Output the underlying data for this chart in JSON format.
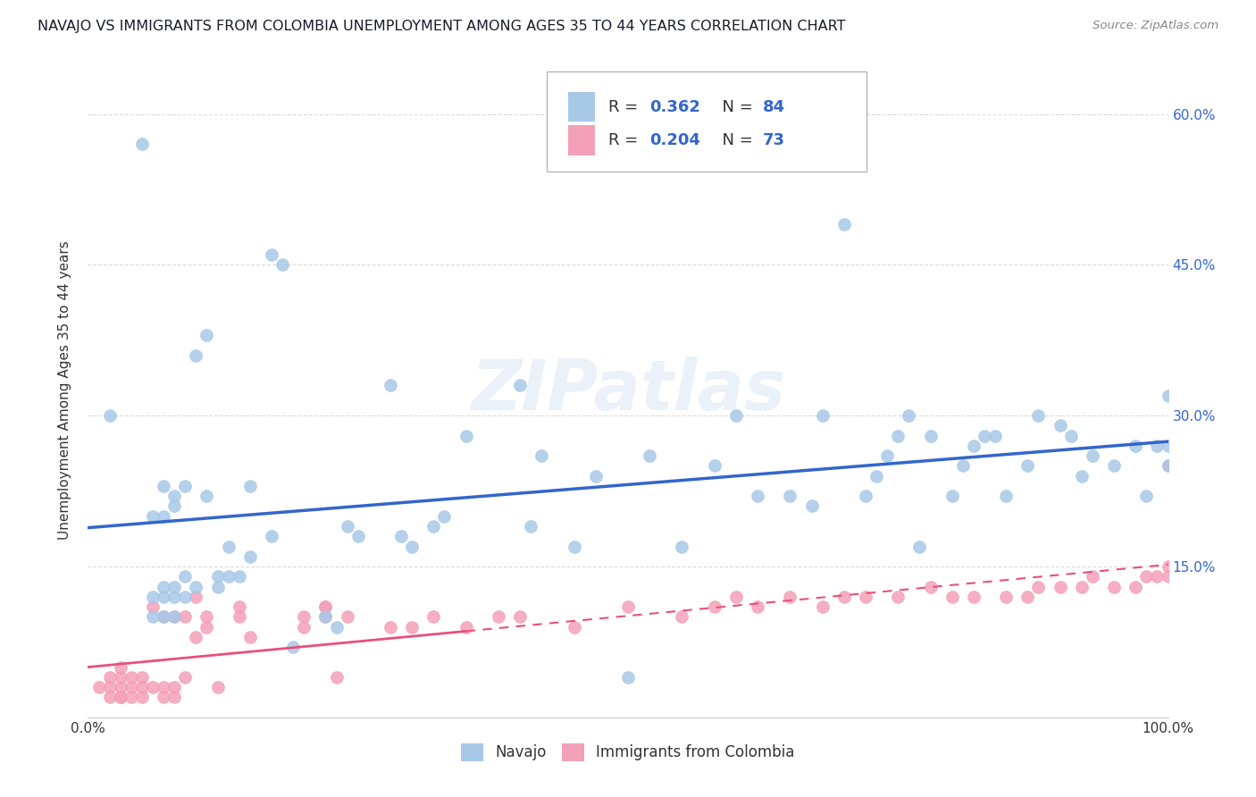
{
  "title": "NAVAJO VS IMMIGRANTS FROM COLOMBIA UNEMPLOYMENT AMONG AGES 35 TO 44 YEARS CORRELATION CHART",
  "source": "Source: ZipAtlas.com",
  "ylabel": "Unemployment Among Ages 35 to 44 years",
  "xlim": [
    0.0,
    1.0
  ],
  "ylim": [
    0.0,
    0.65
  ],
  "navajo_R": 0.362,
  "navajo_N": 84,
  "colombia_R": 0.204,
  "colombia_N": 73,
  "navajo_color": "#a8c8e8",
  "navajo_line_color": "#3366cc",
  "colombia_color": "#f4a0b8",
  "colombia_line_color": "#e8507a",
  "legend_label_navajo": "Navajo",
  "legend_label_colombia": "Immigrants from Colombia",
  "navajo_x": [
    0.02,
    0.05,
    0.06,
    0.06,
    0.06,
    0.07,
    0.07,
    0.07,
    0.07,
    0.07,
    0.08,
    0.08,
    0.08,
    0.08,
    0.08,
    0.09,
    0.09,
    0.09,
    0.1,
    0.1,
    0.11,
    0.11,
    0.12,
    0.12,
    0.13,
    0.13,
    0.14,
    0.15,
    0.15,
    0.17,
    0.17,
    0.18,
    0.22,
    0.23,
    0.24,
    0.25,
    0.28,
    0.3,
    0.32,
    0.35,
    0.4,
    0.42,
    0.45,
    0.47,
    0.5,
    0.52,
    0.55,
    0.58,
    0.6,
    0.62,
    0.65,
    0.67,
    0.68,
    0.7,
    0.72,
    0.73,
    0.74,
    0.75,
    0.76,
    0.77,
    0.78,
    0.8,
    0.81,
    0.82,
    0.83,
    0.84,
    0.85,
    0.87,
    0.88,
    0.9,
    0.91,
    0.92,
    0.93,
    0.95,
    0.97,
    0.98,
    0.99,
    1.0,
    1.0,
    1.0,
    0.19,
    0.29,
    0.41,
    0.33
  ],
  "navajo_y": [
    0.3,
    0.57,
    0.1,
    0.12,
    0.2,
    0.1,
    0.12,
    0.13,
    0.2,
    0.23,
    0.1,
    0.12,
    0.13,
    0.21,
    0.22,
    0.12,
    0.14,
    0.23,
    0.36,
    0.13,
    0.38,
    0.22,
    0.14,
    0.13,
    0.14,
    0.17,
    0.14,
    0.16,
    0.23,
    0.18,
    0.46,
    0.45,
    0.1,
    0.09,
    0.19,
    0.18,
    0.33,
    0.17,
    0.19,
    0.28,
    0.33,
    0.26,
    0.17,
    0.24,
    0.04,
    0.26,
    0.17,
    0.25,
    0.3,
    0.22,
    0.22,
    0.21,
    0.3,
    0.49,
    0.22,
    0.24,
    0.26,
    0.28,
    0.3,
    0.17,
    0.28,
    0.22,
    0.25,
    0.27,
    0.28,
    0.28,
    0.22,
    0.25,
    0.3,
    0.29,
    0.28,
    0.24,
    0.26,
    0.25,
    0.27,
    0.22,
    0.27,
    0.27,
    0.25,
    0.32,
    0.07,
    0.18,
    0.19,
    0.2
  ],
  "colombia_x": [
    0.01,
    0.02,
    0.02,
    0.02,
    0.03,
    0.03,
    0.03,
    0.03,
    0.03,
    0.04,
    0.04,
    0.04,
    0.05,
    0.05,
    0.05,
    0.06,
    0.06,
    0.07,
    0.07,
    0.07,
    0.08,
    0.08,
    0.09,
    0.1,
    0.1,
    0.11,
    0.11,
    0.12,
    0.14,
    0.14,
    0.15,
    0.2,
    0.2,
    0.22,
    0.22,
    0.22,
    0.23,
    0.24,
    0.28,
    0.3,
    0.32,
    0.35,
    0.38,
    0.4,
    0.45,
    0.5,
    0.55,
    0.58,
    0.6,
    0.62,
    0.65,
    0.68,
    0.7,
    0.72,
    0.75,
    0.78,
    0.8,
    0.82,
    0.85,
    0.87,
    0.88,
    0.9,
    0.92,
    0.93,
    0.95,
    0.97,
    0.98,
    0.99,
    1.0,
    1.0,
    1.0,
    0.08,
    0.09
  ],
  "colombia_y": [
    0.03,
    0.02,
    0.03,
    0.04,
    0.02,
    0.02,
    0.03,
    0.04,
    0.05,
    0.02,
    0.03,
    0.04,
    0.02,
    0.03,
    0.04,
    0.03,
    0.11,
    0.02,
    0.03,
    0.1,
    0.02,
    0.03,
    0.04,
    0.08,
    0.12,
    0.09,
    0.1,
    0.03,
    0.1,
    0.11,
    0.08,
    0.09,
    0.1,
    0.11,
    0.1,
    0.11,
    0.04,
    0.1,
    0.09,
    0.09,
    0.1,
    0.09,
    0.1,
    0.1,
    0.09,
    0.11,
    0.1,
    0.11,
    0.12,
    0.11,
    0.12,
    0.11,
    0.12,
    0.12,
    0.12,
    0.13,
    0.12,
    0.12,
    0.12,
    0.12,
    0.13,
    0.13,
    0.13,
    0.14,
    0.13,
    0.13,
    0.14,
    0.14,
    0.14,
    0.15,
    0.25,
    0.1,
    0.1
  ]
}
